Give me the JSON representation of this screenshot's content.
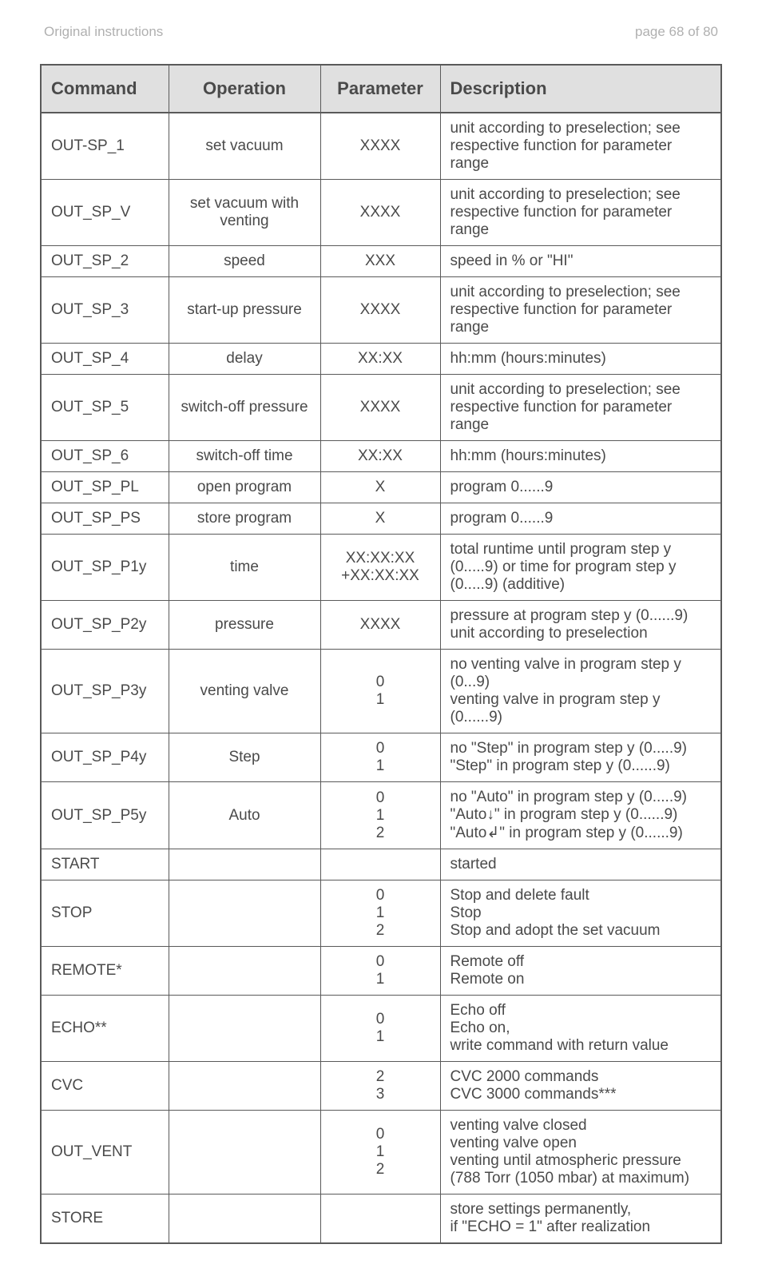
{
  "header": {
    "left": "Original instructions",
    "right": "page 68 of 80"
  },
  "columns": [
    "Command",
    "Operation",
    "Parameter",
    "Description"
  ],
  "rows": [
    {
      "cmd": "OUT-SP_1",
      "op": "set vacuum",
      "par": "XXXX",
      "desc": "unit according to preselection; see respective function for parameter range"
    },
    {
      "cmd": "OUT_SP_V",
      "op": "set vacuum with venting",
      "par": "XXXX",
      "desc": "unit according to preselection; see respective function for parameter range"
    },
    {
      "cmd": "OUT_SP_2",
      "op": "speed",
      "par": "XXX",
      "desc": "speed in % or \"HI\""
    },
    {
      "cmd": "OUT_SP_3",
      "op": "start-up pressure",
      "par": "XXXX",
      "desc": "unit according to preselection; see respective function for parameter range"
    },
    {
      "cmd": "OUT_SP_4",
      "op": "delay",
      "par": "XX:XX",
      "desc": "hh:mm (hours:minutes)"
    },
    {
      "cmd": "OUT_SP_5",
      "op": "switch-off pressure",
      "par": "XXXX",
      "desc": "unit according to preselection; see respective function for parameter range"
    },
    {
      "cmd": "OUT_SP_6",
      "op": "switch-off time",
      "par": "XX:XX",
      "desc": "hh:mm (hours:minutes)"
    },
    {
      "cmd": "OUT_SP_PL",
      "op": "open program",
      "par": "X",
      "desc": "program 0......9"
    },
    {
      "cmd": "OUT_SP_PS",
      "op": "store program",
      "par": "X",
      "desc": "program 0......9"
    },
    {
      "cmd": "OUT_SP_P1y",
      "op": "time",
      "par": "XX:XX:XX\n+XX:XX:XX",
      "desc": "total runtime until program step y (0.....9) or time for program step y (0.....9) (additive)"
    },
    {
      "cmd": "OUT_SP_P2y",
      "op": "pressure",
      "par": "XXXX",
      "desc": "pressure at program step y (0......9) unit according to preselection"
    },
    {
      "cmd": "OUT_SP_P3y",
      "op": "venting valve",
      "par": "0\n1",
      "desc": "no venting valve in program step y (0...9)\nventing valve in program step y (0......9)"
    },
    {
      "cmd": "OUT_SP_P4y",
      "op": "Step",
      "par": "0\n1",
      "desc": "no \"Step\" in program step y (0.....9)\n\"Step\" in program step y (0......9)"
    },
    {
      "cmd": "OUT_SP_P5y",
      "op": "Auto",
      "par": "0\n1\n2",
      "desc": "no \"Auto\" in program step y (0.....9)\n\"Auto↓\" in program step y (0......9)\n\"Auto↲\" in program step y (0......9)"
    },
    {
      "cmd": "START",
      "op": "",
      "par": "",
      "desc": "started"
    },
    {
      "cmd": "STOP",
      "op": "",
      "par": "0\n1\n2",
      "desc": "Stop and delete fault\nStop\nStop and adopt the set vacuum"
    },
    {
      "cmd": "REMOTE*",
      "op": "",
      "par": "0\n1",
      "desc": "Remote off\nRemote on"
    },
    {
      "cmd": "ECHO**",
      "op": "",
      "par": "0\n1",
      "desc": "Echo off\nEcho on,\nwrite command with return value"
    },
    {
      "cmd": "CVC",
      "op": "",
      "par": "2\n3",
      "desc": "CVC 2000 commands\nCVC 3000 commands***"
    },
    {
      "cmd": "OUT_VENT",
      "op": "",
      "par": "0\n1\n2",
      "desc": "venting valve closed\nventing valve open\nventing until atmospheric pressure\n(788 Torr (1050 mbar) at maximum)"
    },
    {
      "cmd": "STORE",
      "op": "",
      "par": "",
      "desc": "store settings permanently,\nif \"ECHO = 1\" after realization"
    }
  ]
}
